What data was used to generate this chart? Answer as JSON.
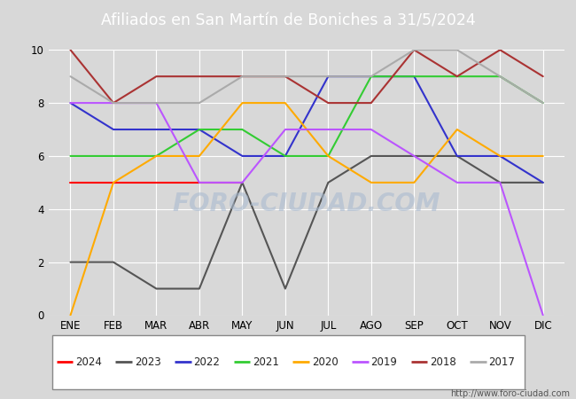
{
  "title": "Afiliados en San Martín de Boniches a 31/5/2024",
  "header_bg": "#4d7ebf",
  "months": [
    "ENE",
    "FEB",
    "MAR",
    "ABR",
    "MAY",
    "JUN",
    "JUL",
    "AGO",
    "SEP",
    "OCT",
    "NOV",
    "DIC"
  ],
  "ylim": [
    0,
    10
  ],
  "yticks": [
    0,
    2,
    4,
    6,
    8,
    10
  ],
  "series": {
    "2024": {
      "color": "#ff0000",
      "data": [
        5,
        5,
        5,
        5,
        5,
        null,
        null,
        null,
        null,
        null,
        null,
        null
      ]
    },
    "2023": {
      "color": "#555555",
      "data": [
        2,
        2,
        1,
        1,
        5,
        1,
        5,
        6,
        6,
        6,
        5,
        5
      ]
    },
    "2022": {
      "color": "#3333cc",
      "data": [
        8,
        7,
        7,
        7,
        6,
        6,
        9,
        9,
        9,
        6,
        6,
        5
      ]
    },
    "2021": {
      "color": "#33cc33",
      "data": [
        6,
        6,
        6,
        7,
        7,
        6,
        6,
        9,
        9,
        9,
        9,
        8
      ]
    },
    "2020": {
      "color": "#ffaa00",
      "data": [
        0,
        5,
        6,
        6,
        8,
        8,
        6,
        5,
        5,
        7,
        6,
        6
      ]
    },
    "2019": {
      "color": "#bb55ff",
      "data": [
        8,
        8,
        8,
        5,
        5,
        7,
        7,
        7,
        6,
        5,
        5,
        0
      ]
    },
    "2018": {
      "color": "#aa3333",
      "data": [
        10,
        8,
        9,
        9,
        9,
        9,
        8,
        8,
        10,
        9,
        10,
        9
      ]
    },
    "2017": {
      "color": "#aaaaaa",
      "data": [
        9,
        8,
        8,
        8,
        9,
        9,
        9,
        9,
        10,
        10,
        9,
        8
      ]
    }
  },
  "legend_order": [
    "2024",
    "2023",
    "2022",
    "2021",
    "2020",
    "2019",
    "2018",
    "2017"
  ],
  "watermark_chart": "FORO-CIUDAD.COM",
  "watermark_url": "http://www.foro-ciudad.com",
  "bg_color": "#d8d8d8",
  "plot_bg": "#d8d8d8",
  "grid_color": "#ffffff",
  "linewidth": 1.5
}
